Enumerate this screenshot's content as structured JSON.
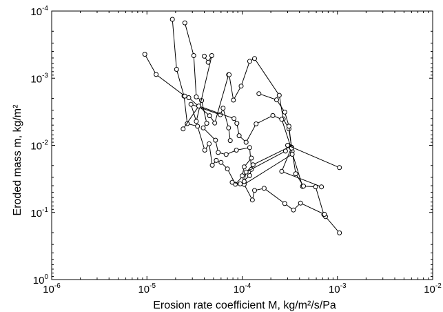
{
  "chart_data": {
    "type": "scatter",
    "title": "",
    "xlabel": "Erosion rate coefficient M, kg/m²/s/Pa",
    "ylabel": "Eroded mass m, kg/m²",
    "xscale": "log",
    "yscale": "log",
    "y_inverted": true,
    "xlim": [
      1e-06,
      0.01
    ],
    "ylim": [
      0.0001,
      1
    ],
    "x_ticks": [
      {
        "base": "10",
        "exp": "-6"
      },
      {
        "base": "10",
        "exp": "-5"
      },
      {
        "base": "10",
        "exp": "-4"
      },
      {
        "base": "10",
        "exp": "-3"
      },
      {
        "base": "10",
        "exp": "-2"
      }
    ],
    "y_ticks": [
      {
        "base": "10",
        "exp": "-4"
      },
      {
        "base": "10",
        "exp": "-3"
      },
      {
        "base": "10",
        "exp": "-2"
      },
      {
        "base": "10",
        "exp": "-1"
      },
      {
        "base": "10",
        "exp": "0"
      }
    ],
    "marker": "open-circle",
    "line_color": "#000000",
    "grid": false,
    "legend": "none",
    "series": [
      {
        "x": [
          1.85e-05,
          2.05e-05,
          2.45e-05,
          2.65e-05,
          3.4e-05,
          4.05e-05,
          4.5e-05,
          4.85e-05,
          5.35e-05,
          6e-05,
          7e-05,
          8.5e-05,
          0.00013,
          0.00032,
          0.00043
        ],
        "y": [
          0.000133,
          0.00074,
          0.00185,
          0.00475,
          0.0052,
          0.0118,
          0.0095,
          0.0198,
          0.0168,
          0.018,
          0.0225,
          0.038,
          0.0195,
          0.0104,
          0.0409
        ]
      },
      {
        "x": [
          9.5e-06,
          1.25e-05,
          2.5e-05,
          2.75e-05,
          4.55e-05,
          5.15e-05,
          7.2e-05,
          7.3e-05,
          8.1e-05,
          9.75e-05,
          0.00012,
          0.000135,
          0.000245,
          0.00027,
          0.00031,
          0.00033,
          0.00026,
          0.00068
        ],
        "y": [
          0.00044,
          0.00088,
          0.00185,
          0.00195,
          0.00362,
          0.00465,
          0.00089,
          0.00089,
          0.00212,
          0.00131,
          0.00056,
          0.00051,
          0.0018,
          0.00405,
          0.0057,
          0.0107,
          0.0245,
          0.0416
        ]
      },
      {
        "x": [
          2.5e-05,
          3.1e-05,
          3.3e-05,
          3.75e-05,
          4.25e-05,
          3.9e-05,
          5.25e-05,
          5.6e-05,
          6.8e-05,
          8.7e-05,
          0.00012,
          0.000125,
          0.00012,
          9.55e-05,
          7.85e-05
        ],
        "y": [
          0.00015,
          0.00046,
          0.0019,
          0.00215,
          0.0047,
          0.0055,
          0.0084,
          0.0128,
          0.0137,
          0.0118,
          0.0108,
          0.0228,
          0.0283,
          0.0376,
          0.0356
        ]
      },
      {
        "x": [
          4e-05,
          4.4e-05,
          4.8e-05,
          3.3e-05,
          2.9e-05,
          5.9e-05,
          6.3e-05,
          7.2e-05,
          7.5e-05
        ],
        "y": [
          0.00047,
          0.00058,
          0.00046,
          0.0044,
          0.00245,
          0.0035,
          0.0028,
          0.0055,
          0.0085
        ]
      },
      {
        "x": [
          2.4e-05,
          3.5e-05,
          8.2e-05,
          8.8e-05,
          9.3e-05,
          0.00011,
          0.00014,
          0.00021,
          0.00026,
          0.000335,
          0.000365,
          0.00044,
          0.00059,
          0.00072,
          0.00075,
          0.00105
        ],
        "y": [
          0.0057,
          0.0026,
          0.004,
          0.0047,
          0.0072,
          0.009,
          0.0048,
          0.0036,
          0.0041,
          0.0123,
          0.0265,
          0.0405,
          0.0415,
          0.1076,
          0.1153,
          0.202
        ]
      },
      {
        "x": [
          0.00015,
          0.00023,
          0.00028,
          0.00031,
          0.00033,
          0.000335,
          0.000105,
          0.000128,
          0.000135,
          0.00017,
          0.00028,
          0.000345,
          0.00041,
          0.00073
        ],
        "y": [
          0.0017,
          0.0021,
          0.0032,
          0.0052,
          0.011,
          0.0136,
          0.0382,
          0.0652,
          0.047,
          0.0437,
          0.0738,
          0.092,
          0.0725,
          0.1067
        ]
      },
      {
        "x": [
          0.000125,
          0.000105,
          0.0001,
          0.000105,
          0.00011,
          0.000285,
          0.0003,
          0.00105
        ],
        "y": [
          0.0155,
          0.021,
          0.0285,
          0.0347,
          0.025,
          0.0122,
          0.01,
          0.0215
        ]
      }
    ]
  }
}
